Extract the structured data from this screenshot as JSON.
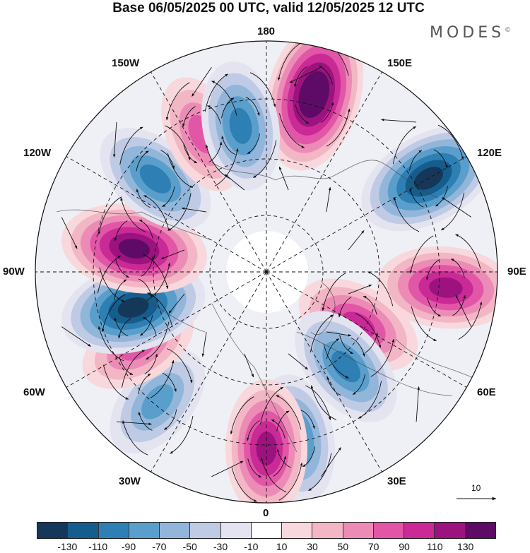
{
  "header": {
    "title": "Base 06/05/2025 00 UTC, valid 12/05/2025 12 UTC",
    "brand": "MODES",
    "brand_mark": "©"
  },
  "map": {
    "projection": "north-polar-stereographic",
    "longitude_labels": {
      "top": "180",
      "bottom": "0",
      "left": "90W",
      "right": "90E",
      "upper_left_1": "150W",
      "upper_left_2": "120W",
      "upper_right_1": "150E",
      "upper_right_2": "120E",
      "lower_left_1": "60W",
      "lower_left_2": "30W",
      "lower_right_1": "60E",
      "lower_right_2": "30E"
    },
    "vector_reference": {
      "label": "10"
    },
    "anomaly_centers": [
      {
        "lon": "165E",
        "sign": "positive",
        "value": 130
      },
      {
        "lon": "120E",
        "sign": "negative",
        "value": -110
      },
      {
        "lon": "85E",
        "sign": "positive",
        "value": 90
      },
      {
        "lon": "60E",
        "sign": "positive",
        "value": 70
      },
      {
        "lon": "40E",
        "sign": "negative",
        "value": -70
      },
      {
        "lon": "10E",
        "sign": "negative",
        "value": -70
      },
      {
        "lon": "0",
        "sign": "positive",
        "value": 90
      },
      {
        "lon": "40W",
        "sign": "negative",
        "value": -50
      },
      {
        "lon": "60W",
        "sign": "positive",
        "value": 50
      },
      {
        "lon": "75W",
        "sign": "negative",
        "value": -110
      },
      {
        "lon": "100W",
        "sign": "positive",
        "value": 110
      },
      {
        "lon": "130W",
        "sign": "negative",
        "value": -70
      },
      {
        "lon": "155W",
        "sign": "positive",
        "value": 50
      },
      {
        "lon": "170W",
        "sign": "negative",
        "value": -70
      }
    ]
  },
  "colorbar": {
    "colors": [
      "#14375a",
      "#155d8c",
      "#2e7fb4",
      "#5a9fcc",
      "#92b6da",
      "#bfcbe5",
      "#e3e4f0",
      "#ffffff",
      "#f8d8dc",
      "#f3b6c5",
      "#ec8cb6",
      "#e256a7",
      "#c92a95",
      "#9c137f",
      "#5d0b66"
    ],
    "tick_labels": [
      "-130",
      "-110",
      "-90",
      "-70",
      "-50",
      "-30",
      "-10",
      "10",
      "30",
      "50",
      "70",
      "90",
      "110",
      "130"
    ]
  }
}
